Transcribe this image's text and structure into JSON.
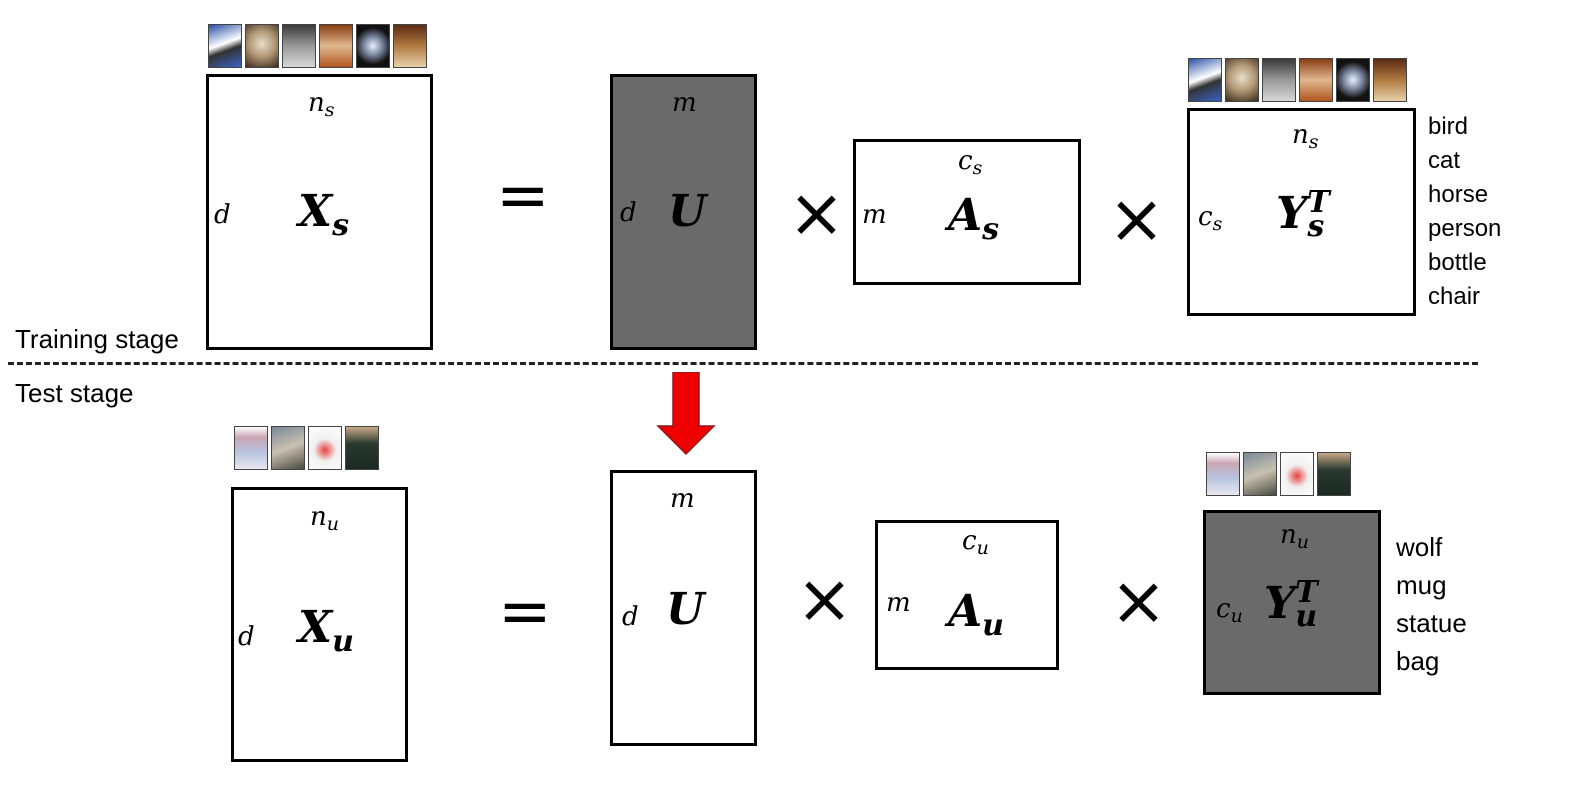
{
  "stages": {
    "training": "Training stage",
    "test": "Test stage"
  },
  "training": {
    "X": {
      "name": "X",
      "sub": "s",
      "rows": "d",
      "cols_base": "n",
      "cols_sub": "s"
    },
    "U": {
      "name": "U",
      "rows": "d",
      "cols": "m"
    },
    "A": {
      "name": "A",
      "sub": "s",
      "rows": "m",
      "cols_base": "c",
      "cols_sub": "s"
    },
    "Y": {
      "name": "Y",
      "sub": "s",
      "sup": "T",
      "rows_base": "c",
      "rows_sub": "s",
      "cols_base": "n",
      "cols_sub": "s"
    },
    "classes": [
      "bird",
      "cat",
      "horse",
      "person",
      "bottle",
      "chair"
    ]
  },
  "test": {
    "X": {
      "name": "X",
      "sub": "u",
      "rows": "d",
      "cols_base": "n",
      "cols_sub": "u"
    },
    "U": {
      "name": "U",
      "rows": "d",
      "cols": "m"
    },
    "A": {
      "name": "A",
      "sub": "u",
      "rows": "m",
      "cols_base": "c",
      "cols_sub": "u"
    },
    "Y": {
      "name": "Y",
      "sub": "u",
      "sup": "T",
      "rows_base": "c",
      "rows_sub": "u",
      "cols_base": "n",
      "cols_sub": "u"
    },
    "classes": [
      "wolf",
      "mug",
      "statue",
      "bag"
    ]
  },
  "operators": {
    "equals": "=",
    "times": "×"
  },
  "colors": {
    "arrow": "#ee0000",
    "shaded": "#6a6a6a"
  },
  "icons": {
    "training_thumbs": [
      "bird-photo-icon",
      "cat-photo-icon",
      "horse-photo-icon",
      "person-photo-icon",
      "bottle-photo-icon",
      "chair-photo-icon"
    ],
    "test_thumbs": [
      "bag-photo-icon",
      "wolf-photo-icon",
      "mug-photo-icon",
      "statue-photo-icon"
    ]
  }
}
